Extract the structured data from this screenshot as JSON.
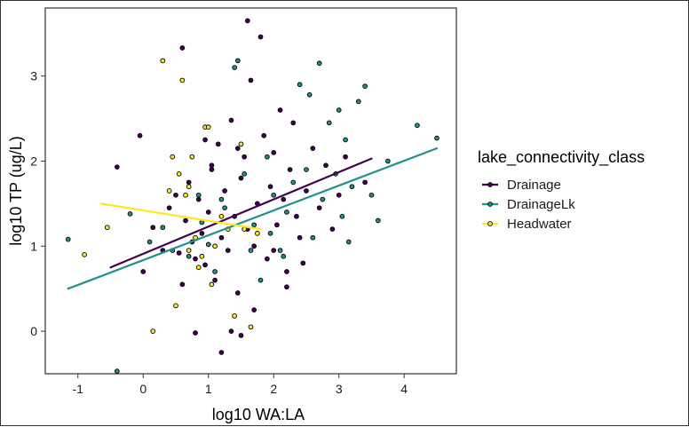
{
  "chart_data": {
    "type": "scatter",
    "title": "",
    "xlabel": "log10 WA:LA",
    "ylabel": "log10 TP (ug/L)",
    "xlim": [
      -1.5,
      4.8
    ],
    "ylim": [
      -0.5,
      3.8
    ],
    "x_ticks": [
      -1,
      0,
      1,
      2,
      3,
      4
    ],
    "y_ticks": [
      0,
      1,
      2,
      3
    ],
    "grid": false,
    "legend": {
      "title": "lake_connectivity_class",
      "placement": "right",
      "entries": [
        "Drainage",
        "DrainageLk",
        "Headwater"
      ]
    },
    "series": [
      {
        "name": "Drainage",
        "color": "#440154",
        "trend": {
          "x": [
            -0.5,
            3.5
          ],
          "y": [
            0.75,
            2.03
          ]
        },
        "points": [
          [
            -0.4,
            1.93
          ],
          [
            0.0,
            0.7
          ],
          [
            -0.05,
            2.3
          ],
          [
            0.15,
            1.22
          ],
          [
            0.3,
            0.95
          ],
          [
            0.4,
            1.45
          ],
          [
            0.5,
            1.6
          ],
          [
            0.55,
            0.92
          ],
          [
            0.6,
            3.33
          ],
          [
            0.65,
            1.3
          ],
          [
            0.7,
            1.75
          ],
          [
            0.75,
            1.05
          ],
          [
            0.8,
            0.85
          ],
          [
            0.85,
            1.55
          ],
          [
            0.9,
            1.15
          ],
          [
            0.95,
            0.78
          ],
          [
            1.0,
            1.4
          ],
          [
            1.05,
            1.9
          ],
          [
            1.1,
            0.6
          ],
          [
            1.15,
            2.2
          ],
          [
            1.2,
            1.1
          ],
          [
            1.25,
            1.65
          ],
          [
            1.3,
            0.95
          ],
          [
            1.35,
            2.48
          ],
          [
            1.4,
            1.35
          ],
          [
            1.45,
            0.45
          ],
          [
            1.5,
            1.8
          ],
          [
            1.55,
            2.05
          ],
          [
            1.6,
            1.2
          ],
          [
            1.65,
            2.95
          ],
          [
            1.7,
            1.0
          ],
          [
            1.75,
            1.5
          ],
          [
            1.8,
            3.46
          ],
          [
            1.85,
            2.3
          ],
          [
            1.9,
            0.85
          ],
          [
            1.95,
            1.7
          ],
          [
            2.0,
            2.1
          ],
          [
            2.05,
            1.25
          ],
          [
            2.1,
            2.6
          ],
          [
            2.15,
            1.55
          ],
          [
            2.2,
            0.7
          ],
          [
            2.25,
            1.9
          ],
          [
            2.3,
            2.45
          ],
          [
            2.35,
            1.35
          ],
          [
            2.4,
            1.1
          ],
          [
            2.5,
            1.65
          ],
          [
            2.6,
            2.15
          ],
          [
            2.7,
            1.45
          ],
          [
            2.8,
            1.95
          ],
          [
            2.9,
            1.2
          ],
          [
            3.0,
            1.6
          ],
          [
            3.1,
            2.05
          ],
          [
            3.4,
            1.75
          ],
          [
            1.6,
            3.65
          ],
          [
            1.2,
            -0.25
          ],
          [
            0.8,
            -0.02
          ],
          [
            1.35,
            0.0
          ],
          [
            1.5,
            -0.05
          ],
          [
            0.6,
            0.55
          ],
          [
            1.05,
            1.95
          ],
          [
            2.2,
            0.52
          ],
          [
            1.7,
            0.25
          ],
          [
            0.95,
            2.25
          ],
          [
            1.45,
            2.15
          ],
          [
            2.0,
            0.95
          ],
          [
            2.45,
            0.8
          ]
        ]
      },
      {
        "name": "DrainageLk",
        "color": "#21908C",
        "trend": {
          "x": [
            -1.15,
            4.5
          ],
          "y": [
            0.5,
            2.15
          ]
        },
        "points": [
          [
            -1.15,
            1.08
          ],
          [
            -0.4,
            -0.47
          ],
          [
            -0.2,
            1.38
          ],
          [
            0.1,
            1.05
          ],
          [
            0.3,
            1.22
          ],
          [
            0.45,
            0.95
          ],
          [
            0.7,
            0.88
          ],
          [
            0.9,
            1.28
          ],
          [
            1.0,
            1.02
          ],
          [
            1.1,
            0.7
          ],
          [
            1.25,
            1.45
          ],
          [
            1.4,
            3.1
          ],
          [
            1.45,
            3.18
          ],
          [
            1.55,
            1.85
          ],
          [
            1.7,
            1.25
          ],
          [
            1.8,
            0.6
          ],
          [
            1.9,
            2.05
          ],
          [
            2.0,
            1.6
          ],
          [
            2.1,
            0.95
          ],
          [
            2.2,
            1.4
          ],
          [
            2.3,
            1.75
          ],
          [
            2.4,
            2.9
          ],
          [
            2.5,
            1.9
          ],
          [
            2.6,
            1.1
          ],
          [
            2.7,
            3.15
          ],
          [
            2.75,
            1.55
          ],
          [
            2.85,
            2.45
          ],
          [
            2.95,
            1.85
          ],
          [
            3.0,
            2.6
          ],
          [
            3.05,
            1.35
          ],
          [
            3.1,
            2.25
          ],
          [
            3.2,
            1.7
          ],
          [
            3.3,
            2.7
          ],
          [
            3.4,
            2.88
          ],
          [
            3.5,
            1.6
          ],
          [
            3.6,
            1.3
          ],
          [
            3.75,
            2.0
          ],
          [
            4.2,
            2.42
          ],
          [
            4.5,
            2.27
          ],
          [
            2.15,
            0.88
          ],
          [
            1.65,
            0.95
          ],
          [
            1.2,
            1.55
          ],
          [
            2.55,
            2.78
          ],
          [
            3.15,
            1.05
          ],
          [
            1.95,
            1.15
          ],
          [
            0.85,
            1.6
          ]
        ]
      },
      {
        "name": "Headwater",
        "color": "#FDE725",
        "trend": {
          "x": [
            -0.65,
            1.8
          ],
          "y": [
            1.5,
            1.2
          ]
        },
        "points": [
          [
            -0.9,
            0.9
          ],
          [
            -0.55,
            1.22
          ],
          [
            0.15,
            0.0
          ],
          [
            0.3,
            3.18
          ],
          [
            0.4,
            1.65
          ],
          [
            0.5,
            0.3
          ],
          [
            0.55,
            1.85
          ],
          [
            0.6,
            2.95
          ],
          [
            0.65,
            1.6
          ],
          [
            0.7,
            0.95
          ],
          [
            0.75,
            2.05
          ],
          [
            0.8,
            1.1
          ],
          [
            0.9,
            0.88
          ],
          [
            0.95,
            2.4
          ],
          [
            1.0,
            2.4
          ],
          [
            1.05,
            0.55
          ],
          [
            1.1,
            1.0
          ],
          [
            1.2,
            1.35
          ],
          [
            1.4,
            0.18
          ],
          [
            1.5,
            2.2
          ],
          [
            1.55,
            1.2
          ],
          [
            1.65,
            0.05
          ],
          [
            1.75,
            1.15
          ],
          [
            0.7,
            1.7
          ],
          [
            1.3,
            1.2
          ],
          [
            0.45,
            2.05
          ],
          [
            0.85,
            0.75
          ]
        ]
      }
    ]
  }
}
